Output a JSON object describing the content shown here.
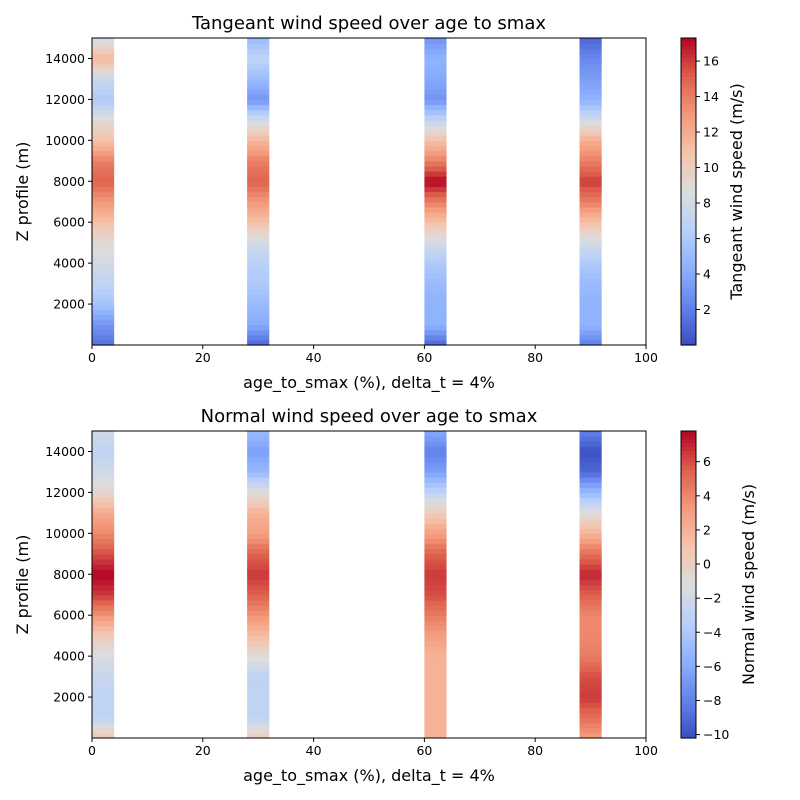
{
  "chart_data": [
    {
      "type": "heatmap",
      "title": "Tangeant wind speed over age to smax",
      "xlabel": "age_to_smax (%), delta_t = 4%",
      "ylabel": "Z profile (m)",
      "colorbar_label": "Tangeant wind speed (m/s)",
      "colormap": "coolwarm",
      "xlim": [
        0,
        100
      ],
      "ylim": [
        0,
        15000
      ],
      "x_ticks": [
        0,
        20,
        40,
        60,
        80,
        100
      ],
      "y_ticks": [
        2000,
        4000,
        6000,
        8000,
        10000,
        12000,
        14000
      ],
      "cbar_range": [
        0,
        17.3
      ],
      "cbar_ticks": [
        2,
        4,
        6,
        8,
        10,
        12,
        14,
        16
      ],
      "column_width": 4,
      "z_levels": [
        0,
        1000,
        2000,
        3000,
        4000,
        5000,
        6000,
        7000,
        8000,
        9000,
        10000,
        11000,
        12000,
        13000,
        14000,
        15000
      ],
      "series": [
        {
          "x": 2,
          "values": [
            1.5,
            3.0,
            5.5,
            7.0,
            8.0,
            9.0,
            11.0,
            13.0,
            15.0,
            14.0,
            11.0,
            9.0,
            6.0,
            7.5,
            11.5,
            8.0
          ]
        },
        {
          "x": 30,
          "values": [
            1.0,
            4.0,
            5.0,
            6.0,
            6.5,
            8.0,
            11.0,
            13.0,
            15.0,
            14.0,
            11.5,
            8.0,
            3.0,
            5.0,
            7.0,
            5.0
          ]
        },
        {
          "x": 62,
          "values": [
            1.0,
            4.5,
            4.5,
            5.0,
            6.0,
            8.0,
            11.0,
            14.0,
            17.3,
            14.0,
            11.0,
            7.0,
            3.0,
            4.0,
            4.5,
            3.0
          ]
        },
        {
          "x": 90,
          "values": [
            2.0,
            4.5,
            4.5,
            5.0,
            6.0,
            8.0,
            11.0,
            14.0,
            16.0,
            14.0,
            12.0,
            8.0,
            4.5,
            3.5,
            2.5,
            1.0
          ]
        }
      ]
    },
    {
      "type": "heatmap",
      "title": "Normal wind speed over age to smax",
      "xlabel": "age_to_smax (%), delta_t = 4%",
      "ylabel": "Z profile (m)",
      "colorbar_label": "Normal wind speed (m/s)",
      "colormap": "coolwarm",
      "xlim": [
        0,
        100
      ],
      "ylim": [
        0,
        15000
      ],
      "x_ticks": [
        0,
        20,
        40,
        60,
        80,
        100
      ],
      "y_ticks": [
        2000,
        4000,
        6000,
        8000,
        10000,
        12000,
        14000
      ],
      "cbar_range": [
        -10.2,
        7.8
      ],
      "cbar_ticks": [
        -10,
        -8,
        -6,
        -4,
        -2,
        0,
        2,
        4,
        6
      ],
      "column_width": 4,
      "z_levels": [
        0,
        1000,
        2000,
        3000,
        4000,
        5000,
        6000,
        7000,
        8000,
        9000,
        10000,
        11000,
        12000,
        13000,
        14000,
        15000
      ],
      "series": [
        {
          "x": 2,
          "values": [
            1.0,
            -3.0,
            -3.0,
            -2.5,
            -1.5,
            0.5,
            3.5,
            6.5,
            7.8,
            6.0,
            4.0,
            2.5,
            -0.5,
            -2.0,
            -3.0,
            -2.0
          ]
        },
        {
          "x": 30,
          "values": [
            0.5,
            -3.0,
            -3.0,
            -3.0,
            -1.0,
            1.5,
            3.5,
            5.5,
            6.5,
            5.5,
            3.0,
            2.0,
            -1.0,
            -5.0,
            -6.5,
            -5.0
          ]
        },
        {
          "x": 62,
          "values": [
            2.0,
            2.0,
            2.0,
            2.0,
            2.0,
            3.0,
            4.5,
            6.0,
            6.5,
            5.5,
            3.0,
            0.5,
            -3.0,
            -6.5,
            -8.0,
            -6.0
          ]
        },
        {
          "x": 90,
          "values": [
            3.0,
            5.0,
            6.5,
            6.0,
            4.5,
            4.0,
            4.0,
            5.5,
            7.0,
            5.0,
            2.0,
            -1.0,
            -5.0,
            -9.0,
            -10.0,
            -8.0
          ]
        }
      ]
    }
  ]
}
